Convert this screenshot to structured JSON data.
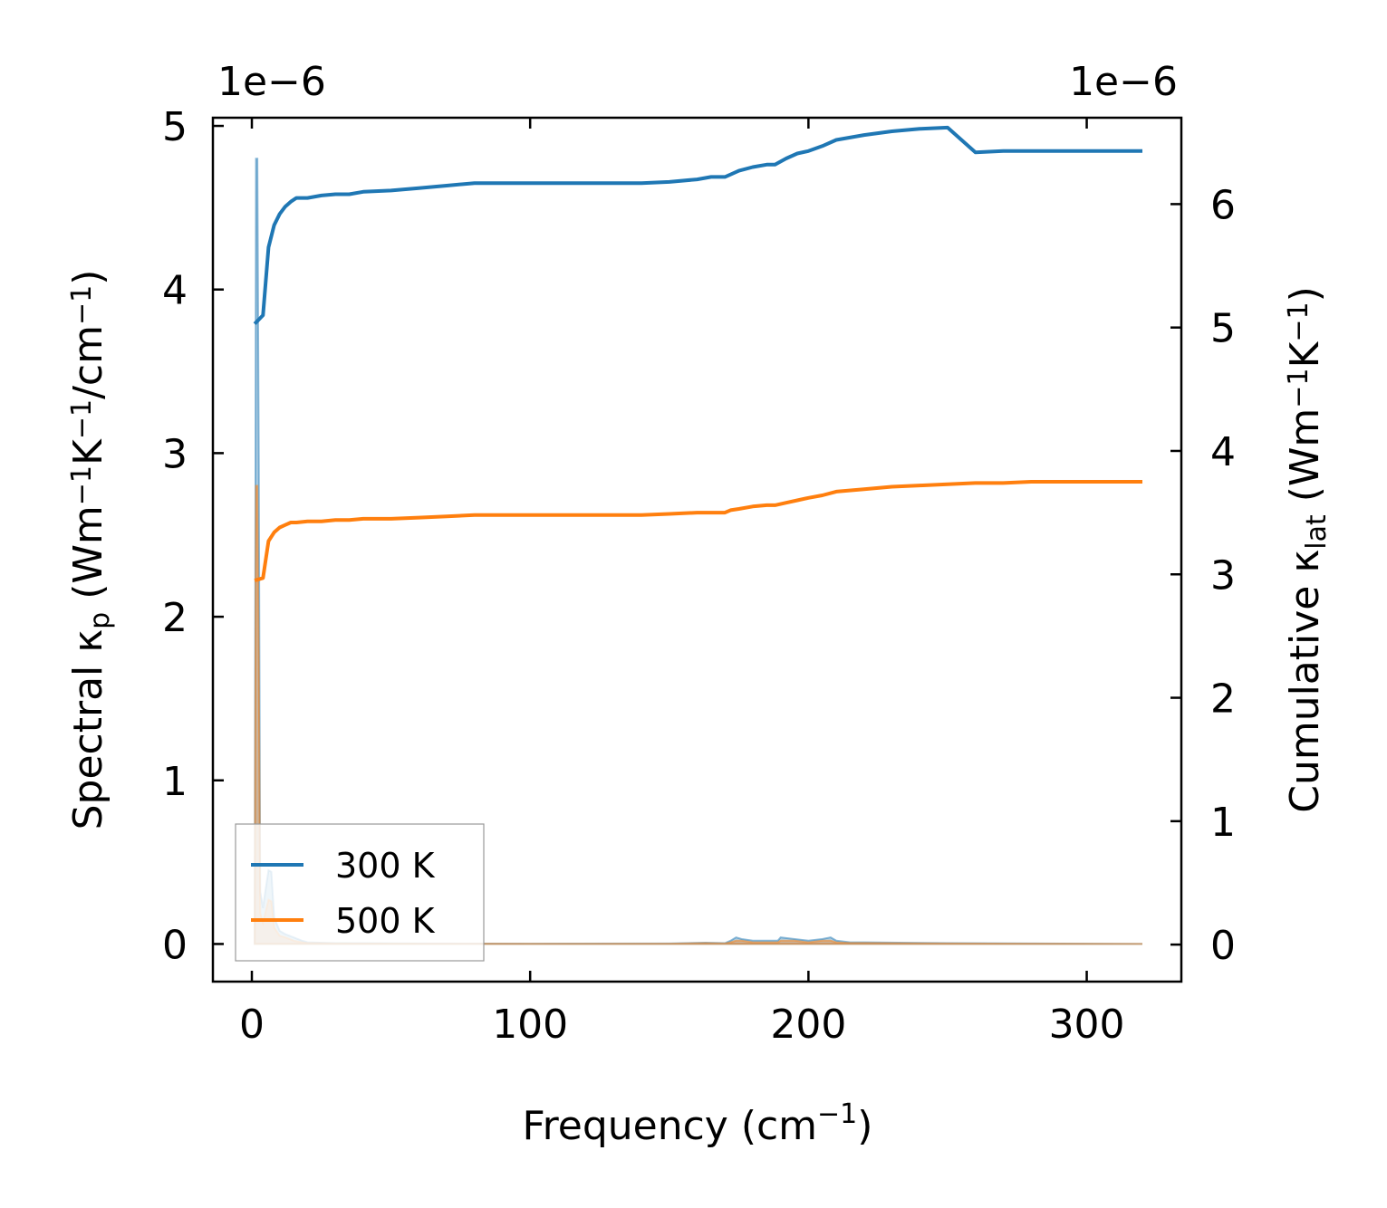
{
  "chart_data": {
    "type": "line",
    "xlabel": "Frequency (cm",
    "xlabel_sup": "−1",
    "xlabel_tail": ")",
    "xlim": [
      -14,
      334
    ],
    "x_ticks": [
      0,
      100,
      200,
      300
    ],
    "x_tick_labels": [
      "0",
      "100",
      "200",
      "300"
    ],
    "left_axis": {
      "label_parts": [
        {
          "t": "Spectral κ"
        },
        {
          "t": "p",
          "s": "sub"
        },
        {
          "t": " (Wm"
        },
        {
          "t": "−1",
          "s": "sup"
        },
        {
          "t": "K"
        },
        {
          "t": "−1",
          "s": "sup"
        },
        {
          "t": "/cm"
        },
        {
          "t": "−1",
          "s": "sup"
        },
        {
          "t": ")"
        }
      ],
      "ylim": [
        -2.3e-07,
        5.05e-06
      ],
      "offset_text": "1e−6",
      "ticks": [
        0,
        1e-06,
        2e-06,
        3e-06,
        4e-06,
        5e-06
      ],
      "tick_labels": [
        "0",
        "1",
        "2",
        "3",
        "4",
        "5"
      ]
    },
    "right_axis": {
      "label_parts": [
        {
          "t": "Cumulative κ"
        },
        {
          "t": "lat",
          "s": "sub"
        },
        {
          "t": " (Wm"
        },
        {
          "t": "−1",
          "s": "sup"
        },
        {
          "t": "K"
        },
        {
          "t": "−1",
          "s": "sup"
        },
        {
          "t": ")"
        }
      ],
      "ylim": [
        -3e-07,
        6.7e-06
      ],
      "offset_text": "1e−6",
      "ticks": [
        0,
        1e-06,
        2e-06,
        3e-06,
        4e-06,
        5e-06,
        6e-06
      ],
      "tick_labels": [
        "0",
        "1",
        "2",
        "3",
        "4",
        "5",
        "6"
      ]
    },
    "legend": {
      "placement": "lower-left",
      "entries": [
        "300 K",
        "500 K"
      ]
    },
    "grid": false,
    "series": [
      {
        "name": "300 K",
        "axis": "right",
        "color": "#1f77b4",
        "x": [
          1,
          4,
          6,
          8,
          10,
          12,
          14,
          16,
          20,
          25,
          30,
          35,
          40,
          50,
          60,
          70,
          80,
          90,
          100,
          120,
          140,
          150,
          160,
          165,
          170,
          172,
          175,
          180,
          185,
          188,
          192,
          196,
          200,
          205,
          210,
          220,
          230,
          240,
          250,
          260,
          270,
          280,
          290,
          300,
          320
        ],
        "y": [
          5.03e-06,
          5.1e-06,
          5.65e-06,
          5.83e-06,
          5.92e-06,
          5.98e-06,
          6.02e-06,
          6.05e-06,
          6.05e-06,
          6.07e-06,
          6.08e-06,
          6.08e-06,
          6.1e-06,
          6.11e-06,
          6.13e-06,
          6.15e-06,
          6.17e-06,
          6.17e-06,
          6.17e-06,
          6.17e-06,
          6.17e-06,
          6.18e-06,
          6.2e-06,
          6.22e-06,
          6.22e-06,
          6.24e-06,
          6.27e-06,
          6.3e-06,
          6.32e-06,
          6.32e-06,
          6.37e-06,
          6.41e-06,
          6.43e-06,
          6.47e-06,
          6.52e-06,
          6.56e-06,
          6.59e-06,
          6.61e-06,
          6.62e-06,
          6.42e-06,
          6.43e-06,
          6.43e-06,
          6.43e-06,
          6.43e-06,
          6.43e-06
        ]
      },
      {
        "name": "500 K",
        "axis": "right",
        "color": "#ff7f0e",
        "x": [
          1,
          4,
          6,
          8,
          10,
          12,
          14,
          16,
          20,
          25,
          30,
          35,
          40,
          50,
          60,
          70,
          80,
          90,
          100,
          120,
          140,
          150,
          160,
          165,
          170,
          172,
          175,
          180,
          185,
          188,
          192,
          196,
          200,
          205,
          210,
          220,
          230,
          240,
          250,
          260,
          270,
          280,
          290,
          300,
          320
        ],
        "y": [
          2.95e-06,
          2.97e-06,
          3.27e-06,
          3.34e-06,
          3.38e-06,
          3.4e-06,
          3.42e-06,
          3.42e-06,
          3.43e-06,
          3.43e-06,
          3.44e-06,
          3.44e-06,
          3.45e-06,
          3.45e-06,
          3.46e-06,
          3.47e-06,
          3.48e-06,
          3.48e-06,
          3.48e-06,
          3.48e-06,
          3.48e-06,
          3.49e-06,
          3.5e-06,
          3.5e-06,
          3.5e-06,
          3.52e-06,
          3.53e-06,
          3.55e-06,
          3.56e-06,
          3.56e-06,
          3.58e-06,
          3.6e-06,
          3.62e-06,
          3.64e-06,
          3.67e-06,
          3.69e-06,
          3.71e-06,
          3.72e-06,
          3.73e-06,
          3.74e-06,
          3.74e-06,
          3.75e-06,
          3.75e-06,
          3.75e-06,
          3.75e-06
        ]
      },
      {
        "name": "300 K",
        "type": "area",
        "axis": "left",
        "color": "#1f77b4",
        "opacity": 0.35,
        "x": [
          1,
          1.5,
          2,
          2.5,
          3,
          4,
          5,
          6,
          7,
          8,
          10,
          12,
          15,
          18,
          20,
          30,
          60,
          100,
          150,
          163,
          170,
          172,
          174,
          176,
          180,
          185,
          189,
          190,
          195,
          200,
          205,
          208,
          210,
          215,
          220,
          250,
          280,
          320
        ],
        "y": [
          0,
          4.8e-06,
          4.8e-06,
          2.9e-06,
          3.2e-07,
          2.2e-07,
          3.4e-07,
          4.5e-07,
          4.4e-07,
          1.6e-07,
          8e-08,
          6e-08,
          4e-08,
          2e-08,
          1e-08,
          5e-09,
          3e-09,
          2e-09,
          3e-09,
          8e-09,
          5e-09,
          2e-08,
          4e-08,
          3e-08,
          2e-08,
          2e-08,
          2e-08,
          4e-08,
          3e-08,
          2e-08,
          3e-08,
          4e-08,
          2e-08,
          1e-08,
          1e-08,
          5e-09,
          3e-09,
          0
        ]
      },
      {
        "name": "500 K",
        "type": "area",
        "axis": "left",
        "color": "#ff7f0e",
        "opacity": 0.35,
        "x": [
          1,
          1.5,
          2,
          2.5,
          3,
          4,
          5,
          6,
          7,
          8,
          10,
          12,
          15,
          18,
          20,
          30,
          60,
          100,
          150,
          163,
          170,
          172,
          174,
          176,
          180,
          185,
          189,
          190,
          195,
          200,
          205,
          208,
          210,
          215,
          220,
          250,
          280,
          320
        ],
        "y": [
          0,
          2.8e-06,
          2.8e-06,
          1.7e-06,
          1.9e-07,
          1.3e-07,
          2e-07,
          2.7e-07,
          2.6e-07,
          1e-07,
          5e-08,
          4e-08,
          2e-08,
          1e-08,
          6e-09,
          3e-09,
          2e-09,
          1e-09,
          2e-09,
          5e-09,
          3e-09,
          1e-08,
          2e-08,
          2e-08,
          1e-08,
          1e-08,
          1e-08,
          2e-08,
          2e-08,
          1e-08,
          2e-08,
          2e-08,
          1e-08,
          6e-09,
          6e-09,
          3e-09,
          2e-09,
          0
        ]
      }
    ]
  }
}
